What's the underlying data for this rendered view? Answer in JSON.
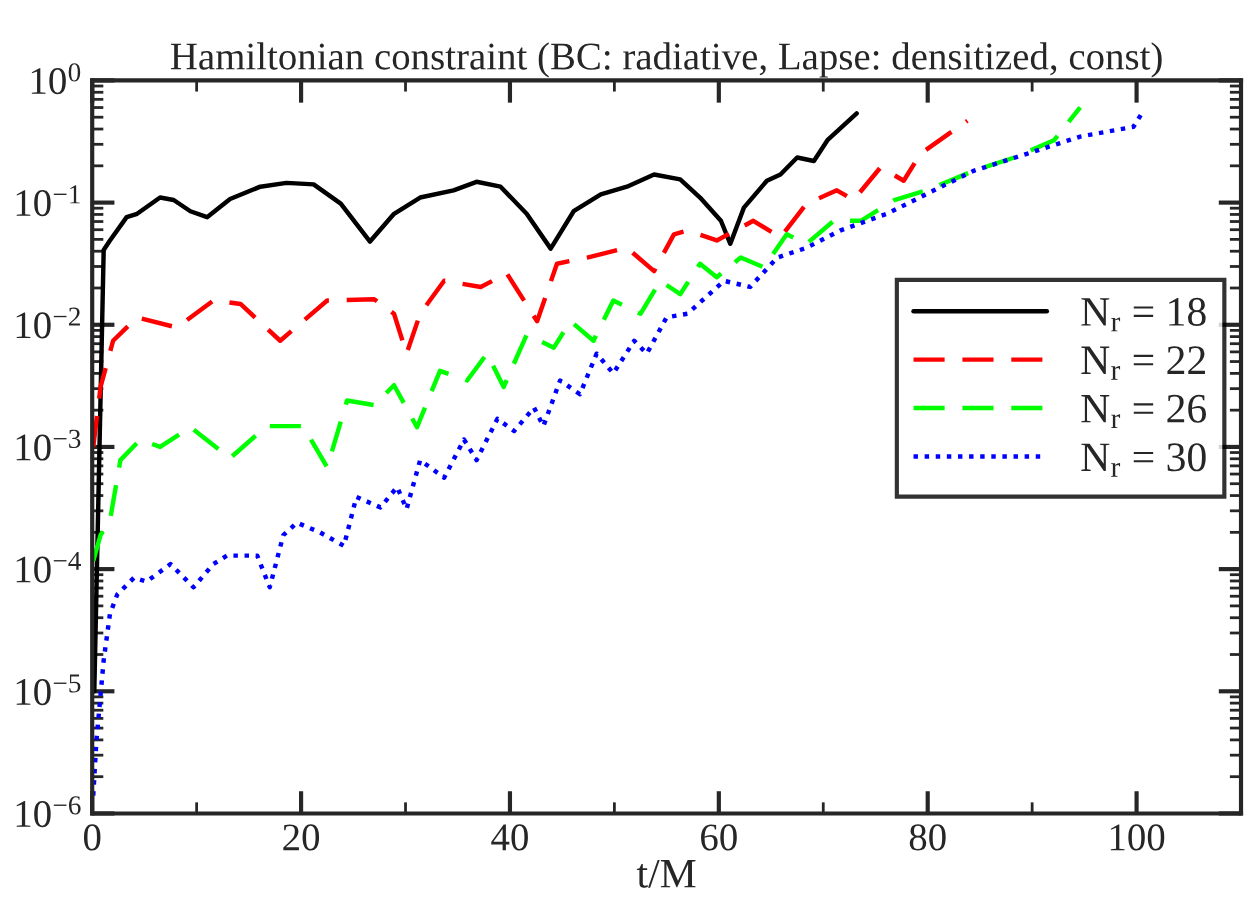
{
  "chart_data": {
    "type": "line",
    "title": "Hamiltonian constraint (BC: radiative, Lapse: densitized, const)",
    "xlabel": "t/M",
    "log": "y",
    "grid": false,
    "legend": "right",
    "marker": "none",
    "xlim": [
      0,
      110
    ],
    "xticks": [
      0,
      20,
      40,
      60,
      80,
      100
    ],
    "ylim": [
      1e-06,
      1
    ],
    "yticks": [
      {
        "value": 1e-06,
        "label": "10$^{−6}$"
      },
      {
        "value": 1e-05,
        "label": "10$^{−5}$"
      },
      {
        "value": 0.0001,
        "label": "10$^{−4}$"
      },
      {
        "value": 0.001,
        "label": "10$^{−3}$"
      },
      {
        "value": 0.01,
        "label": "10$^{−2}$"
      },
      {
        "value": 0.1,
        "label": "10$^{−1}$"
      },
      {
        "value": 1,
        "label": "10$^{0}$"
      }
    ],
    "series": [
      {
        "name": "N$_{r}$ = 18",
        "color": "#000000",
        "line_style": "solid",
        "x": [
          0.2,
          1.1,
          1.7,
          3.3,
          4.3,
          6.5,
          7.8,
          9.4,
          11,
          13.2,
          16.1,
          18.6,
          21.2,
          23.8,
          26.6,
          28.9,
          31.4,
          34.6,
          36.8,
          39.1,
          41.6,
          43.9,
          46.1,
          48.7,
          51.2,
          53.8,
          56.3,
          58.2,
          60.2,
          61.1,
          62.4,
          64.6,
          65.9,
          67.5,
          69.1,
          70.4,
          73.2
        ],
        "values": [
          1e-05,
          0.041,
          0.049,
          0.076,
          0.081,
          0.11,
          0.105,
          0.085,
          0.076,
          0.107,
          0.135,
          0.145,
          0.141,
          0.098,
          0.048,
          0.081,
          0.11,
          0.126,
          0.148,
          0.135,
          0.081,
          0.042,
          0.085,
          0.117,
          0.135,
          0.17,
          0.155,
          0.11,
          0.071,
          0.046,
          0.091,
          0.151,
          0.17,
          0.234,
          0.219,
          0.324,
          0.537
        ]
      },
      {
        "name": "N$_{r}$ = 22",
        "color": "#ff0000",
        "line_style": "dashed",
        "x": [
          0.1,
          0.8,
          2.0,
          4.3,
          8.1,
          11.6,
          14.2,
          18.0,
          22.5,
          27.0,
          28.9,
          30.1,
          31.4,
          33.7,
          37.2,
          39.7,
          42.6,
          44.5,
          47.4,
          51.2,
          53.8,
          55.7,
          57,
          59.8,
          63.3,
          65.9,
          68.4,
          71.3,
          72.9,
          75.5,
          77.7,
          79.3,
          83.8
        ],
        "values": [
          0.001,
          0.0031,
          0.0074,
          0.0115,
          0.0095,
          0.0158,
          0.0148,
          0.0074,
          0.0158,
          0.0162,
          0.0123,
          0.0058,
          0.0123,
          0.0229,
          0.0204,
          0.0263,
          0.0107,
          0.0316,
          0.0355,
          0.0427,
          0.0275,
          0.055,
          0.059,
          0.049,
          0.071,
          0.052,
          0.098,
          0.126,
          0.105,
          0.195,
          0.151,
          0.251,
          0.468
        ]
      },
      {
        "name": "N$_{r}$ = 26",
        "color": "#00ff00",
        "line_style": "dashed",
        "x": [
          0.1,
          0.8,
          1.7,
          2.7,
          4.6,
          6.5,
          9.4,
          13.2,
          16.7,
          20.2,
          22.5,
          24.4,
          27,
          28.9,
          31.1,
          33.3,
          35.9,
          37.8,
          39.4,
          41.6,
          44.2,
          45.8,
          48,
          49.9,
          52.5,
          54.4,
          56.3,
          58.2,
          59.8,
          62.1,
          64.3,
          66.5,
          68.4,
          71,
          73.6,
          76.8,
          79.9,
          84.4,
          88.3,
          92.1,
          94.6
        ],
        "values": [
          0.000117,
          0.00019,
          0.00025,
          0.00078,
          0.00115,
          0.001,
          0.00145,
          0.00081,
          0.00148,
          0.00148,
          0.00068,
          0.0024,
          0.0022,
          0.0032,
          0.00145,
          0.0042,
          0.0035,
          0.0058,
          0.0031,
          0.0083,
          0.0065,
          0.0107,
          0.0074,
          0.0158,
          0.0123,
          0.0229,
          0.0178,
          0.0316,
          0.0245,
          0.0355,
          0.0295,
          0.055,
          0.046,
          0.071,
          0.071,
          0.105,
          0.126,
          0.182,
          0.234,
          0.324,
          0.603
        ]
      },
      {
        "name": "N$_{r}$ = 30",
        "color": "#0000ff",
        "line_style": "dotted",
        "x": [
          0.1,
          0.4,
          1.1,
          1.7,
          2.4,
          4.0,
          5.2,
          7.5,
          9.7,
          11.6,
          12.9,
          15.8,
          17.0,
          18.3,
          19.6,
          21.8,
          24.1,
          25.3,
          27.6,
          29.2,
          30.1,
          31.4,
          33.7,
          35.6,
          36.8,
          38.8,
          40.4,
          42.3,
          43.2,
          44.8,
          46.7,
          48.3,
          49.9,
          51.9,
          53.1,
          55,
          57,
          60.5,
          63,
          65.6,
          68.4,
          71.6,
          76.1,
          80.6,
          84.4,
          89.5,
          94.6,
          99.7,
          100.5
        ],
        "values": [
          1.4e-06,
          3.9e-06,
          1.8e-05,
          4.3e-05,
          6.2e-05,
          8.5e-05,
          7.9e-05,
          0.00011,
          7.1e-05,
          0.00011,
          0.000129,
          0.000129,
          7.1e-05,
          0.00019,
          0.00024,
          0.0002,
          0.000155,
          0.00039,
          0.00032,
          0.00047,
          0.00031,
          0.00078,
          0.00056,
          0.00115,
          0.00078,
          0.0017,
          0.00135,
          0.0021,
          0.00148,
          0.0035,
          0.0027,
          0.0058,
          0.004,
          0.0074,
          0.0058,
          0.0115,
          0.0123,
          0.0229,
          0.0204,
          0.0355,
          0.0427,
          0.059,
          0.081,
          0.126,
          0.182,
          0.251,
          0.347,
          0.417,
          0.537
        ]
      }
    ]
  }
}
